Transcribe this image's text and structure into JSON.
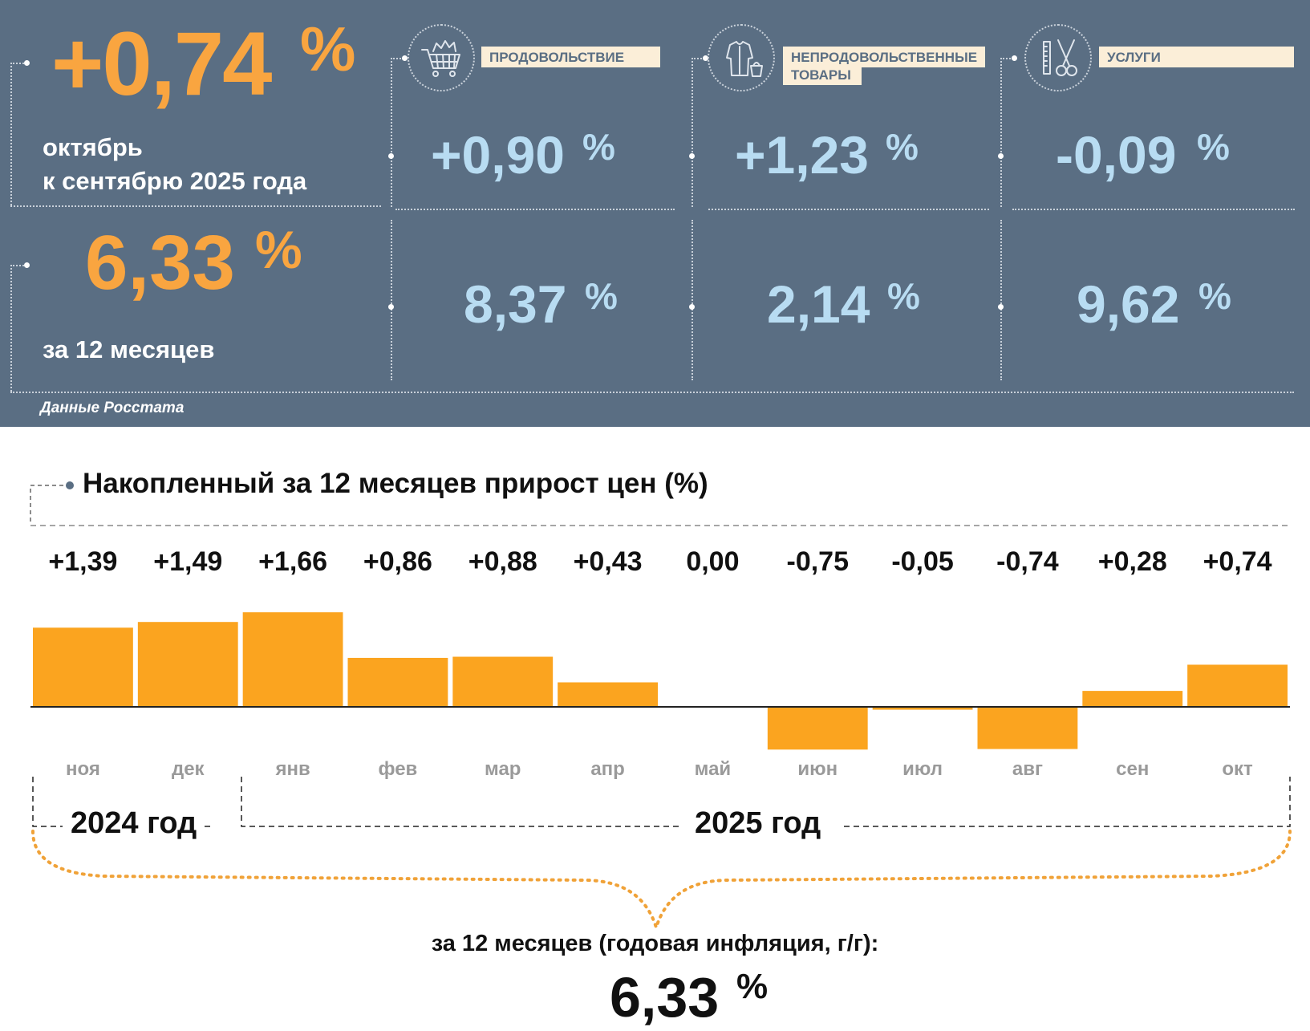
{
  "panel": {
    "monthly": {
      "value": "+0,74",
      "unit": "%",
      "line1": "октябрь",
      "line2": "к сентябрю 2025 года"
    },
    "annual": {
      "value": "6,33",
      "unit": "%",
      "caption": "за 12 месяцев"
    },
    "categories": [
      {
        "icon": "shopping-cart-icon",
        "label": "ПРОДОВОЛЬСТВИЕ",
        "monthly": "+0,90",
        "annual": "8,37",
        "unit": "%"
      },
      {
        "icon": "clothing-bag-icon",
        "label_line1": "НЕПРОДОВОЛЬСТВЕННЫЕ",
        "label_line2": "ТОВАРЫ",
        "monthly": "+1,23",
        "annual": "2,14",
        "unit": "%"
      },
      {
        "icon": "scissors-comb-icon",
        "label": "УСЛУГИ",
        "monthly": "-0,09",
        "annual": "9,62",
        "unit": "%"
      }
    ],
    "source": "Данные Росстата"
  },
  "chart_data": {
    "type": "bar",
    "title": "Накопленный за 12 месяцев прирост цен (%)",
    "categories": [
      "ноя",
      "дек",
      "янв",
      "фев",
      "мар",
      "апр",
      "май",
      "июн",
      "июл",
      "авг",
      "сен",
      "окт"
    ],
    "values": [
      1.39,
      1.49,
      1.66,
      0.86,
      0.88,
      0.43,
      0.0,
      -0.75,
      -0.05,
      -0.74,
      0.28,
      0.74
    ],
    "data_labels": [
      "+1,39",
      "+1,49",
      "+1,66",
      "+0,86",
      "+0,88",
      "+0,43",
      "0,00",
      "-0,75",
      "-0,05",
      "-0,74",
      "+0,28",
      "+0,74"
    ],
    "years": [
      "2024 год",
      "2025 год"
    ],
    "bar_color": "#fba41f",
    "grid": false
  },
  "summary": {
    "caption": "за 12 месяцев (годовая инфляция, г/г):",
    "value": "6,33",
    "unit": "%"
  },
  "colors": {
    "panel_bg": "#5a6e83",
    "accent_orange": "#f9a540",
    "value_blue": "#b8dcf2",
    "label_bg": "#fbeed8"
  }
}
